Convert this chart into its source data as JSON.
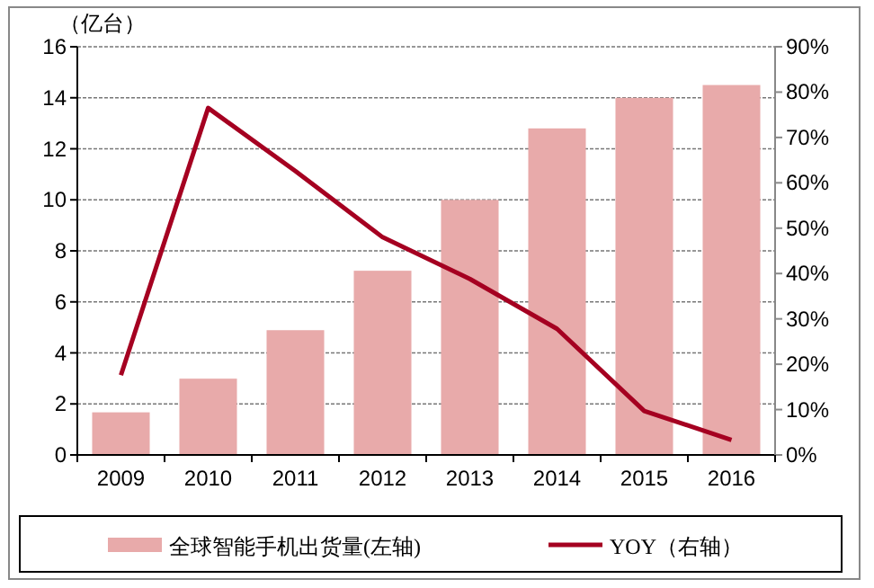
{
  "chart_data": {
    "type": "bar",
    "ylabel": "（亿台）",
    "categories": [
      "2009",
      "2010",
      "2011",
      "2012",
      "2013",
      "2014",
      "2015",
      "2016"
    ],
    "series": [
      {
        "name": "全球智能手机出货量(左轴)",
        "color": "#e8aaaa",
        "values": [
          1.67,
          2.99,
          4.89,
          7.22,
          10.0,
          12.8,
          14.0,
          14.5
        ]
      },
      {
        "name": "YOY（右轴）",
        "type": "line",
        "axis": "y2",
        "color": "#a50021",
        "values": [
          17.6,
          76.5,
          62.6,
          48.0,
          38.8,
          27.8,
          9.7,
          3.3
        ]
      }
    ],
    "ylim": [
      0,
      16
    ],
    "yticks": [
      0,
      2,
      4,
      6,
      8,
      10,
      12,
      14,
      16
    ],
    "y2lim": [
      0,
      90
    ],
    "y2ticks": [
      {
        "value": 0,
        "label": "0%"
      },
      {
        "value": 10,
        "label": "10%"
      },
      {
        "value": 20,
        "label": "20%"
      },
      {
        "value": 30,
        "label": "30%"
      },
      {
        "value": 40,
        "label": "40%"
      },
      {
        "value": 50,
        "label": "50%"
      },
      {
        "value": 60,
        "label": "60%"
      },
      {
        "value": 70,
        "label": "70%"
      },
      {
        "value": 80,
        "label": "80%"
      },
      {
        "value": 90,
        "label": "90%"
      }
    ],
    "grid": "y",
    "legend": "bottom"
  }
}
